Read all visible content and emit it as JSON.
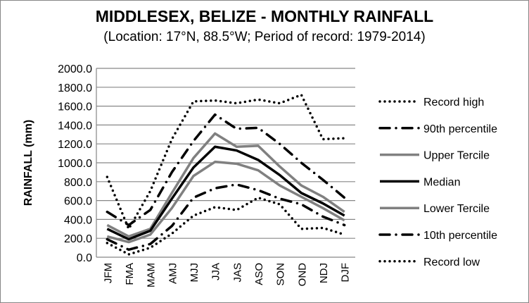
{
  "chart_data": {
    "type": "line",
    "title": "MIDDLESEX, BELIZE - MONTHLY RAINFALL",
    "subtitle": "(Location: 17°N, 88.5°W; Period of record: 1979-2014)",
    "xlabel": "",
    "ylabel": "RAINFALL (mm)",
    "ylim": [
      0,
      2000
    ],
    "yticks": [
      "0.0",
      "200.0",
      "400.0",
      "600.0",
      "800.0",
      "1000.0",
      "1200.0",
      "1400.0",
      "1600.0",
      "1800.0",
      "2000.0"
    ],
    "grid": true,
    "legend": "right",
    "categories": [
      "JFM",
      "FMA",
      "MAM",
      "AMJ",
      "MJJ",
      "JJA",
      "JAS",
      "ASO",
      "SON",
      "OND",
      "NDJ",
      "DJF"
    ],
    "series": [
      {
        "name": "Record high",
        "style": "dotted",
        "color": "#000000",
        "values": [
          850,
          300,
          700,
          1250,
          1650,
          1660,
          1630,
          1670,
          1630,
          1720,
          1250,
          1260
        ]
      },
      {
        "name": "90th percentile",
        "style": "dashdot",
        "color": "#000000",
        "values": [
          480,
          340,
          500,
          900,
          1230,
          1510,
          1360,
          1370,
          1200,
          1000,
          820,
          630
        ]
      },
      {
        "name": "Upper Tercile",
        "style": "solid",
        "color": "#808080",
        "values": [
          340,
          220,
          300,
          680,
          1050,
          1310,
          1170,
          1180,
          960,
          760,
          640,
          480
        ]
      },
      {
        "name": "Median",
        "style": "solid",
        "color": "#000000",
        "values": [
          300,
          190,
          280,
          620,
          950,
          1170,
          1130,
          1030,
          870,
          680,
          570,
          440
        ]
      },
      {
        "name": "Lower Tercile",
        "style": "solid",
        "color": "#808080",
        "values": [
          220,
          160,
          240,
          520,
          860,
          1010,
          990,
          920,
          760,
          640,
          520,
          390
        ]
      },
      {
        "name": "10th percentile",
        "style": "dashdot",
        "color": "#000000",
        "values": [
          190,
          80,
          140,
          330,
          630,
          730,
          770,
          710,
          620,
          560,
          430,
          340
        ]
      },
      {
        "name": "Record low",
        "style": "dotted",
        "color": "#000000",
        "values": [
          150,
          30,
          100,
          250,
          440,
          530,
          500,
          630,
          560,
          300,
          310,
          240
        ]
      }
    ]
  }
}
